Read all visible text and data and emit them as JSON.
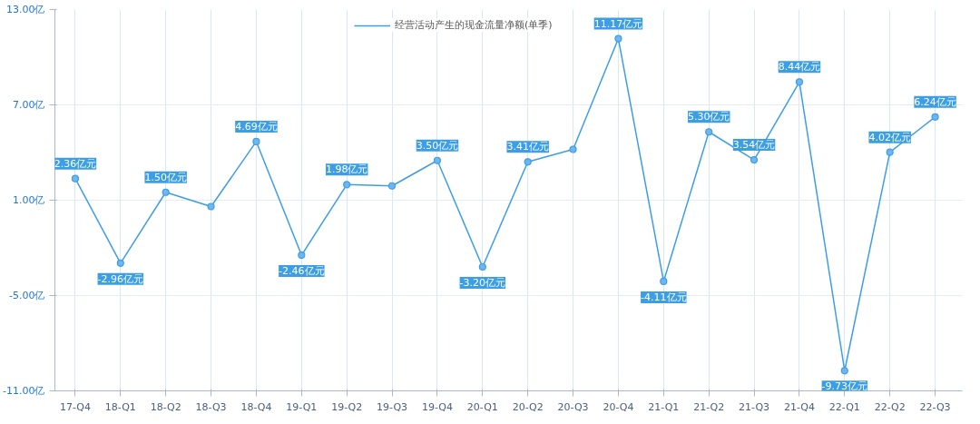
{
  "chart_data": {
    "type": "line",
    "categories": [
      "17-Q4",
      "18-Q1",
      "18-Q2",
      "18-Q3",
      "18-Q4",
      "19-Q1",
      "19-Q2",
      "19-Q3",
      "19-Q4",
      "20-Q1",
      "20-Q2",
      "20-Q3",
      "20-Q4",
      "21-Q1",
      "21-Q2",
      "21-Q3",
      "21-Q4",
      "22-Q1",
      "22-Q2",
      "22-Q3"
    ],
    "series": [
      {
        "name": "经营活动产生的现金流量净额(单季)",
        "color": "#3c9ee5",
        "values": [
          2.36,
          -2.96,
          1.5,
          0.6,
          4.69,
          -2.46,
          1.98,
          1.9,
          3.5,
          -3.2,
          3.41,
          4.2,
          11.17,
          -4.11,
          5.3,
          3.54,
          8.44,
          -9.73,
          4.02,
          6.24
        ],
        "value_labels": [
          "2.36亿元",
          "-2.96亿元",
          "1.50亿元",
          null,
          "4.69亿元",
          "-2.46亿元",
          "1.98亿元",
          null,
          "3.50亿元",
          "-3.20亿元",
          "3.41亿元",
          null,
          "11.17亿元",
          "-4.11亿元",
          "5.30亿元",
          "3.54亿元",
          "8.44亿元",
          "-9.73亿元",
          "4.02亿元",
          "6.24亿元"
        ]
      }
    ],
    "ylim": [
      -11,
      13
    ],
    "yticks": [
      {
        "value": 13,
        "label": "13.00亿"
      },
      {
        "value": 7,
        "label": "7.00亿"
      },
      {
        "value": 1,
        "label": "1.00亿"
      },
      {
        "value": -5,
        "label": "-5.00亿"
      },
      {
        "value": -11,
        "label": "-11.00亿"
      }
    ],
    "grid": true,
    "legend": "top",
    "marker": "circle",
    "line_style": "solid"
  }
}
